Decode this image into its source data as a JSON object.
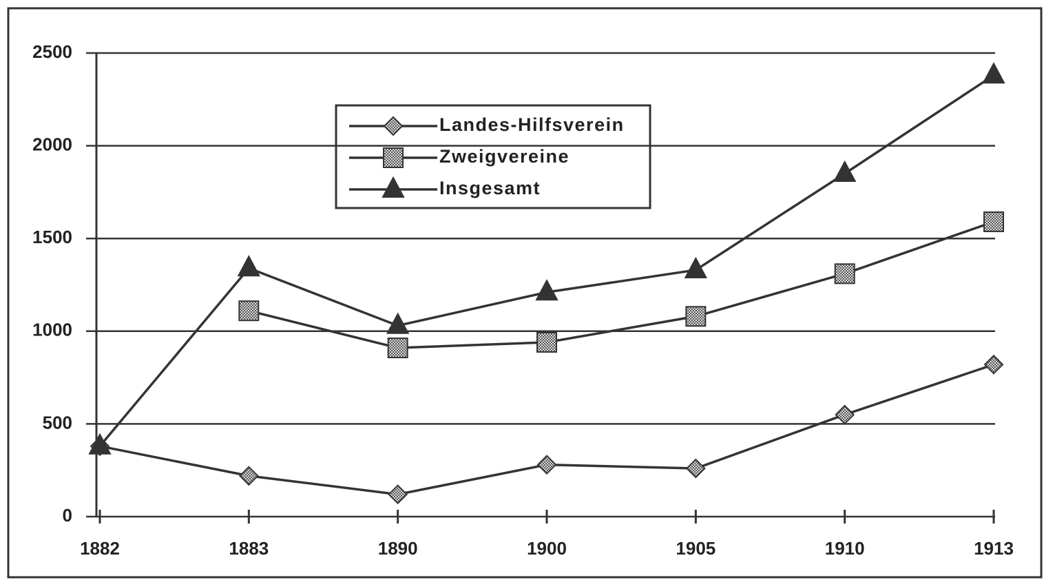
{
  "chart_data": {
    "type": "line",
    "categories": [
      "1882",
      "1883",
      "1890",
      "1900",
      "1905",
      "1910",
      "1913"
    ],
    "series": [
      {
        "name": "Landes-Hilfsverein",
        "color": "#333333",
        "marker": "diamond",
        "values": [
          380,
          220,
          120,
          280,
          260,
          550,
          820
        ]
      },
      {
        "name": "Zweigvereine",
        "color": "#333333",
        "marker": "square",
        "values": [
          null,
          1110,
          910,
          940,
          1080,
          1310,
          1590
        ]
      },
      {
        "name": "Insgesamt",
        "color": "#333333",
        "marker": "triangle",
        "values": [
          380,
          1340,
          1030,
          1210,
          1330,
          1850,
          2380
        ]
      }
    ],
    "ylim": [
      0,
      2500
    ],
    "yticks": [
      0,
      500,
      1000,
      1500,
      2000,
      2500
    ],
    "grid": true
  }
}
